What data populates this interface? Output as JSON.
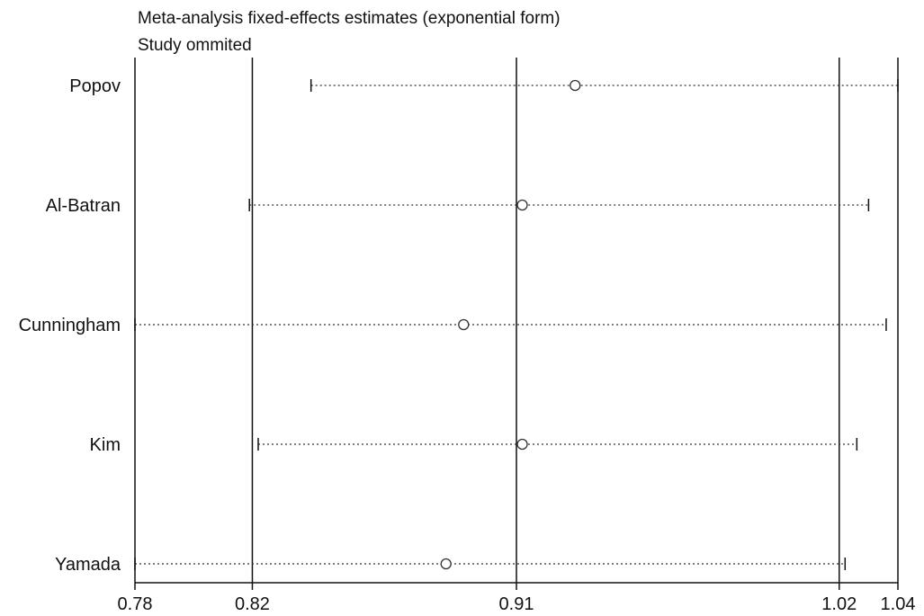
{
  "chart_data": {
    "type": "scatter",
    "title": "Meta-analysis fixed-effects estimates (exponential form)",
    "subtitle": "Study ommited",
    "xlabel": "",
    "ylabel": "",
    "xlim": [
      0.78,
      1.04
    ],
    "x_ticks": [
      "0.78",
      "0.82",
      "0.91",
      "1.02",
      "1.04"
    ],
    "reference_lines": [
      0.82,
      0.91,
      1.02
    ],
    "grid": false,
    "legend": "none",
    "studies": [
      {
        "name": "Popov",
        "estimate": 0.93,
        "ci_low": 0.84,
        "ci_high": 1.04
      },
      {
        "name": "Al-Batran",
        "estimate": 0.912,
        "ci_low": 0.819,
        "ci_high": 1.03
      },
      {
        "name": "Cunningham",
        "estimate": 0.892,
        "ci_low": 0.78,
        "ci_high": 1.036
      },
      {
        "name": "Kim",
        "estimate": 0.912,
        "ci_low": 0.822,
        "ci_high": 1.026
      },
      {
        "name": "Yamada",
        "estimate": 0.886,
        "ci_low": 0.779,
        "ci_high": 1.022
      }
    ],
    "colors": {
      "axis": "#111111",
      "interval": "#333333",
      "marker": "#333333"
    }
  }
}
